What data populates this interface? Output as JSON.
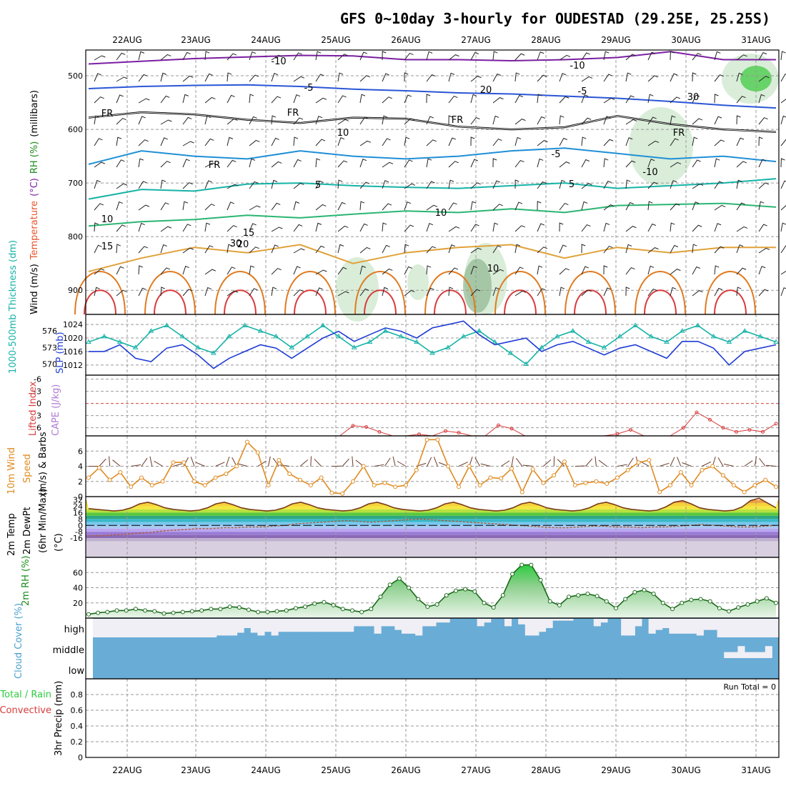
{
  "title": "GFS 0~10day 3-hourly for OUDESTAD (29.25E, 25.25S)",
  "dates": [
    "22AUG",
    "23AUG",
    "24AUG",
    "25AUG",
    "26AUG",
    "27AUG",
    "28AUG",
    "29AUG",
    "30AUG",
    "31AUG"
  ],
  "run_total": "Run Total = 0",
  "chart_data": [
    {
      "type": "contour",
      "panel": "upper-air",
      "ylabel_parts": [
        {
          "text": "Wind (m/s)",
          "color": "#000000"
        },
        {
          "text": "Temperature",
          "color": "#e8552b"
        },
        {
          "text": "(°C)",
          "color": "#7b1fa2"
        },
        {
          "text": "RH (%)",
          "color": "#1a8a1a"
        },
        {
          "text": "(millibars)",
          "color": "#000000"
        }
      ],
      "yticks": [
        500,
        600,
        700,
        800,
        900
      ],
      "contour_labels": [
        "-10",
        "-10",
        "-5",
        "-5",
        "FR",
        "FR",
        "FR",
        "FR",
        "FR",
        "-5",
        "5",
        "5",
        "10",
        "10",
        "15",
        "15",
        "20",
        "20",
        "-10",
        "10",
        "30",
        "30",
        "10"
      ],
      "isotherms": [
        {
          "label": "-10",
          "color": "#7b1fa2",
          "levels": [
            478,
            473,
            468,
            465,
            462,
            463,
            470,
            470,
            472,
            470,
            466,
            455,
            470,
            470
          ]
        },
        {
          "label": "-5",
          "color": "#2a56d6",
          "levels": [
            524,
            520,
            518,
            517,
            520,
            525,
            528,
            532,
            534,
            538,
            542,
            548,
            555,
            560
          ]
        },
        {
          "label": "FR",
          "color": "#000000",
          "levels": [
            578,
            568,
            572,
            582,
            588,
            578,
            580,
            595,
            600,
            596,
            575,
            590,
            600,
            605
          ]
        },
        {
          "label": "5",
          "color": "#1f8fd6",
          "levels": [
            665,
            640,
            650,
            655,
            640,
            650,
            655,
            650,
            640,
            635,
            645,
            655,
            650,
            660
          ]
        },
        {
          "label": "10",
          "color": "#17b3a8",
          "levels": [
            730,
            712,
            715,
            702,
            700,
            705,
            708,
            710,
            705,
            700,
            710,
            705,
            700,
            692
          ]
        },
        {
          "label": "15",
          "color": "#2bb573",
          "levels": [
            780,
            772,
            768,
            760,
            765,
            758,
            752,
            755,
            748,
            755,
            742,
            740,
            738,
            745
          ]
        },
        {
          "label": "20",
          "color": "#e0a23a",
          "levels": [
            865,
            840,
            820,
            830,
            815,
            850,
            830,
            820,
            815,
            840,
            820,
            830,
            820,
            820
          ]
        }
      ]
    },
    {
      "type": "line",
      "panel": "thickness-slp",
      "ylabel_left": "1000-500mb Thickness (dm)",
      "ylabel_right": "SLP (mb)",
      "yticks_left": [
        570,
        573,
        576
      ],
      "yticks_right": [
        1012,
        1016,
        1020,
        1024
      ],
      "series": [
        {
          "name": "SLP",
          "color": "#1f3bd6",
          "values": [
            1016,
            1016,
            1018,
            1014,
            1013,
            1017,
            1018,
            1015,
            1011,
            1014,
            1016,
            1018,
            1017,
            1014,
            1017,
            1020,
            1022,
            1019,
            1021,
            1023,
            1022,
            1020,
            1023,
            1024,
            1025,
            1021,
            1018,
            1019,
            1020,
            1016,
            1018,
            1019,
            1017,
            1015,
            1017,
            1018,
            1016,
            1014,
            1019,
            1019,
            1017,
            1012,
            1016,
            1017,
            1018
          ]
        },
        {
          "name": "Thickness",
          "color": "#17b3a8",
          "values": [
            574,
            575,
            574,
            573,
            576,
            577,
            575,
            573,
            572,
            575,
            577,
            576,
            575,
            573,
            575,
            577,
            575,
            573,
            574,
            576,
            575,
            574,
            572,
            573,
            575,
            576,
            574,
            572,
            570,
            573,
            575,
            576,
            574,
            573,
            575,
            577,
            575,
            574,
            576,
            577,
            575,
            574,
            576,
            575,
            574
          ]
        }
      ]
    },
    {
      "type": "line",
      "panel": "cape-li",
      "ylabel_left": "Lifted Index",
      "ylabel_right": "CAPE (J/kg)",
      "yticks": [
        "-6",
        "-3",
        "0",
        "3",
        "6"
      ],
      "series": [
        {
          "name": "Lifted Index",
          "color": "#d83b3b",
          "values": [
            8,
            8,
            8,
            8,
            8,
            8,
            8,
            8,
            8,
            8,
            8,
            8,
            8,
            8,
            8,
            8,
            8,
            8,
            8,
            8,
            5.5,
            5.8,
            7,
            8,
            8,
            7.6,
            8,
            6.8,
            7.2,
            8,
            8,
            5.4,
            6.2,
            8,
            8,
            8,
            8,
            8,
            8,
            8,
            7.5,
            6.5,
            8,
            8,
            8,
            6,
            2.2,
            4,
            6,
            7,
            6.5,
            7,
            5
          ]
        }
      ]
    },
    {
      "type": "line",
      "panel": "wind-10m",
      "ylabel": "10m Wind Speed (m/s) & Barbs",
      "yticks": [
        0,
        2,
        4,
        6
      ],
      "series": [
        {
          "name": "Speed",
          "color": "#e08a1f",
          "values": [
            2.5,
            3.8,
            2.2,
            3.2,
            1.3,
            2.5,
            1.5,
            2,
            4.5,
            4.5,
            2,
            1.5,
            2.5,
            3,
            4,
            7.2,
            5.8,
            1.5,
            4.8,
            3,
            2.2,
            1.5,
            2.5,
            0.5,
            0.4,
            2,
            4,
            1.5,
            1.8,
            1.3,
            1.5,
            3.5,
            7.5,
            7.5,
            4,
            1.3,
            4,
            1.5,
            2.5,
            2.4,
            3.7,
            0.6,
            3.6,
            1.8,
            2.8,
            4.6,
            1.5,
            1.8,
            2,
            1.7,
            2.5,
            3.5,
            4.5,
            4.8,
            0.6,
            1.5,
            3.2,
            1.5,
            3.5,
            4,
            2.8,
            1.5,
            0.6,
            1.5,
            2.2,
            1.3
          ]
        }
      ]
    },
    {
      "type": "area",
      "panel": "temperature",
      "ylabel_lines": [
        "2m Temp",
        "2m DewPt",
        "(6hr Min/Max)",
        "(°C)"
      ],
      "yticks": [
        32,
        24,
        16,
        8,
        0,
        -8,
        -16
      ],
      "series": [
        {
          "name": "2m Temp",
          "color": "#7a3a1a",
          "values": [
            21,
            20,
            19,
            18,
            19,
            22,
            27,
            29,
            26,
            22,
            20,
            19,
            18,
            19,
            22,
            27,
            29,
            26,
            22,
            20,
            19,
            18,
            19,
            22,
            27,
            29,
            26,
            22,
            20,
            19,
            18,
            19,
            22,
            27,
            29,
            26,
            22,
            20,
            19,
            18,
            19,
            22,
            27,
            29,
            26,
            22,
            20,
            19,
            18,
            19,
            22,
            27,
            29,
            26,
            22,
            20,
            19,
            18,
            19,
            22,
            27,
            29,
            26,
            22,
            20,
            19,
            18,
            19,
            23,
            29,
            31,
            27,
            22,
            20,
            19,
            18,
            19,
            23,
            31,
            34,
            28,
            22
          ]
        },
        {
          "name": "2m DewPt",
          "color": "#b05a3a",
          "values": [
            -13,
            -13,
            -12,
            -11,
            -10,
            -9,
            -7,
            -6,
            -5,
            -4,
            -4,
            -3,
            -3,
            -2,
            -2,
            -1,
            0,
            2,
            3,
            4,
            5,
            6,
            5,
            4,
            5,
            6,
            7,
            8,
            7,
            6,
            5,
            4,
            3,
            2,
            1,
            0,
            -1,
            -2,
            -3,
            -3,
            -2,
            -1,
            -1,
            -2,
            -2,
            -3,
            -2,
            -2,
            -1,
            0,
            1,
            0,
            -1,
            -2,
            -2,
            -1,
            0
          ]
        }
      ]
    },
    {
      "type": "area",
      "panel": "rh-2m",
      "ylabel": "2m RH (%)",
      "yticks": [
        20,
        40,
        60
      ],
      "series": [
        {
          "name": "2m RH",
          "color": "#1a8a1a",
          "values": [
            5,
            7,
            8,
            10,
            10,
            12,
            10,
            9,
            6,
            7,
            8,
            9,
            10,
            12,
            12,
            15,
            14,
            11,
            8,
            8,
            9,
            10,
            13,
            15,
            19,
            21,
            17,
            12,
            10,
            8,
            12,
            28,
            44,
            52,
            40,
            25,
            15,
            18,
            30,
            36,
            38,
            35,
            20,
            14,
            30,
            58,
            70,
            70,
            50,
            22,
            17,
            28,
            30,
            32,
            29,
            22,
            13,
            25,
            34,
            37,
            32,
            20,
            12,
            20,
            24,
            25,
            22,
            13,
            9,
            14,
            18,
            22,
            26,
            20
          ]
        }
      ]
    },
    {
      "type": "heatmap",
      "panel": "cloud-cover",
      "ylabel": "Cloud Cover (%)",
      "layers": [
        "high",
        "middle",
        "low"
      ],
      "high": [
        0,
        0,
        0,
        0,
        0,
        0,
        0,
        0,
        0,
        0,
        0,
        0,
        0,
        0,
        0,
        0,
        0,
        0,
        10,
        10,
        10,
        25,
        50,
        25,
        10,
        30,
        10,
        30,
        30,
        30,
        30,
        30,
        30,
        30,
        30,
        30,
        30,
        30,
        60,
        60,
        60,
        20,
        60,
        60,
        40,
        20,
        20,
        10,
        60,
        60,
        80,
        80,
        100,
        100,
        100,
        100,
        60,
        80,
        100,
        100,
        60,
        100,
        70,
        10,
        10,
        30,
        50,
        90,
        90,
        90,
        100,
        100,
        100,
        60,
        80,
        100,
        100,
        10,
        10,
        60,
        100,
        20,
        40,
        50,
        20,
        20,
        20,
        20,
        10,
        40,
        40,
        0,
        0,
        0,
        0,
        0,
        0,
        0,
        0,
        0
      ],
      "middle": [
        0,
        0,
        0,
        0,
        0,
        0,
        0,
        0,
        0,
        0,
        0,
        0,
        0,
        0,
        0,
        0,
        0,
        0,
        0,
        0,
        0,
        0,
        0,
        0,
        0,
        0,
        0,
        0,
        0,
        0,
        0,
        0,
        0,
        0,
        0,
        0,
        0,
        0,
        0,
        0,
        0,
        0,
        0,
        0,
        0,
        0,
        0,
        0,
        0,
        0,
        0,
        0,
        0,
        0,
        0,
        0,
        0,
        0,
        0,
        0,
        0,
        0,
        0,
        0,
        0,
        0,
        0,
        0,
        0,
        0,
        0,
        0,
        0,
        0,
        0,
        0,
        0,
        0,
        0,
        0,
        0,
        0,
        0,
        0,
        0,
        0,
        0,
        0,
        0,
        0,
        0,
        0,
        30,
        30,
        60,
        30,
        30,
        30,
        60
      ],
      "low": [
        0,
        0,
        0,
        0,
        0,
        0,
        0,
        0,
        0,
        0,
        0,
        0,
        0,
        0,
        0,
        0,
        0,
        0,
        0,
        0,
        0,
        0,
        0,
        0,
        0,
        0,
        0,
        0,
        0,
        0,
        0,
        0,
        0,
        0,
        0,
        0,
        0,
        0,
        0,
        0,
        0,
        0,
        0,
        0,
        0,
        0,
        0,
        0,
        0,
        0,
        0,
        0,
        0,
        0,
        0,
        0,
        0,
        0,
        0,
        0,
        0,
        0,
        0,
        0,
        0,
        0,
        0,
        0,
        0,
        0,
        0,
        0,
        0,
        0,
        0,
        0,
        0,
        0,
        0,
        0,
        0,
        0,
        0,
        0,
        0,
        0,
        0,
        0,
        0,
        0,
        0,
        0,
        0,
        0,
        0,
        0,
        0,
        0,
        0
      ]
    },
    {
      "type": "bar",
      "panel": "precip",
      "ylabel": "3hr Precip (mm)",
      "legend_total": "Total / Rain",
      "legend_conv": "Convective",
      "yticks": [
        "0",
        "0.2",
        "0.4",
        "0.6",
        "0.8"
      ],
      "ylim": [
        0,
        1
      ],
      "values": []
    }
  ],
  "colors": {
    "frame": "#000000",
    "grid": "#a0a0a0",
    "cloud_blue": "#69acd6",
    "rh_green": "#2ecc40"
  }
}
